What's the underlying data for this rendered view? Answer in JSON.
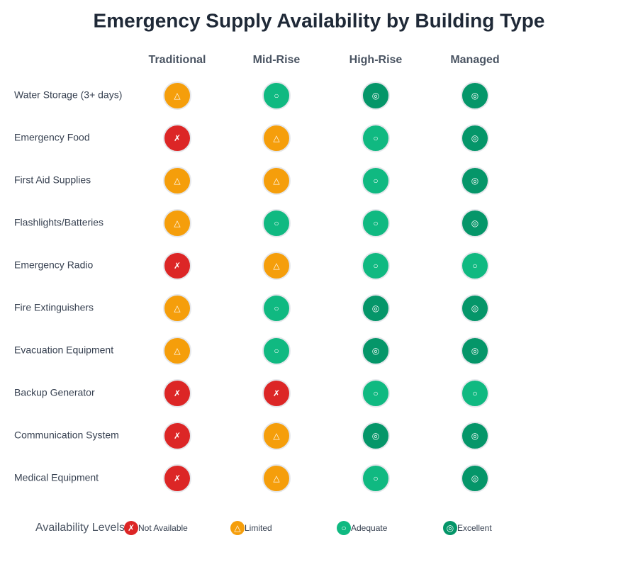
{
  "title": "Emergency Supply Availability by Building Type",
  "columns": [
    "Traditional",
    "Mid-Rise",
    "High-Rise",
    "Managed"
  ],
  "levels": [
    {
      "symbol": "✗",
      "label": "Not Available",
      "color": "#dc2626"
    },
    {
      "symbol": "△",
      "label": "Limited",
      "color": "#f59e0b"
    },
    {
      "symbol": "○",
      "label": "Adequate",
      "color": "#10b981"
    },
    {
      "symbol": "◎",
      "label": "Excellent",
      "color": "#059669"
    }
  ],
  "legend_title": "Availability Levels",
  "rows": [
    {
      "label": "Water Storage (3+ days)",
      "cells": [
        "△",
        "○",
        "◎",
        "◎"
      ]
    },
    {
      "label": "Emergency Food",
      "cells": [
        "✗",
        "△",
        "○",
        "◎"
      ]
    },
    {
      "label": "First Aid Supplies",
      "cells": [
        "△",
        "△",
        "○",
        "◎"
      ]
    },
    {
      "label": "Flashlights/Batteries",
      "cells": [
        "△",
        "○",
        "○",
        "◎"
      ]
    },
    {
      "label": "Emergency Radio",
      "cells": [
        "✗",
        "△",
        "○",
        "○"
      ]
    },
    {
      "label": "Fire Extinguishers",
      "cells": [
        "△",
        "○",
        "◎",
        "◎"
      ]
    },
    {
      "label": "Evacuation Equipment",
      "cells": [
        "△",
        "○",
        "◎",
        "◎"
      ]
    },
    {
      "label": "Backup Generator",
      "cells": [
        "✗",
        "✗",
        "○",
        "○"
      ]
    },
    {
      "label": "Communication System",
      "cells": [
        "✗",
        "△",
        "◎",
        "◎"
      ]
    },
    {
      "label": "Medical Equipment",
      "cells": [
        "✗",
        "△",
        "○",
        "◎"
      ]
    }
  ]
}
